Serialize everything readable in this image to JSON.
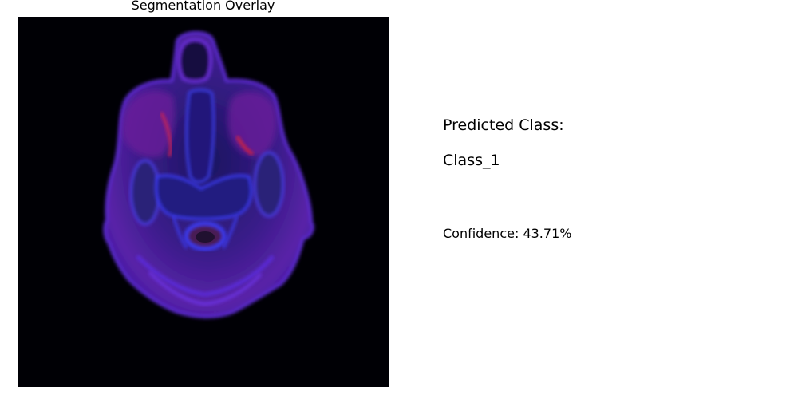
{
  "overlay": {
    "title": "Segmentation Overlay"
  },
  "prediction": {
    "label": "Predicted Class:",
    "value": "Class_1",
    "confidence_text": "Confidence: 43.71%",
    "confidence_percent": 43.71
  },
  "colors": {
    "background": "#ffffff",
    "scan_background": "#000000",
    "tissue_purple": "#6a1fb0",
    "tissue_blue": "#2a2ad8",
    "highlight_red": "#c0205a"
  }
}
